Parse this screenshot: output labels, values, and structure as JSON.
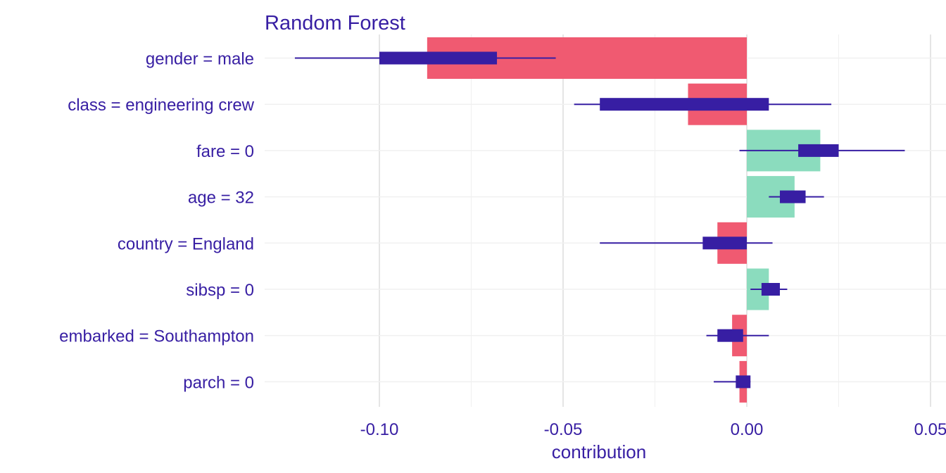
{
  "colors": {
    "positive": "#8bdcbe",
    "negative": "#f05a71",
    "boxplot": "#371ea3",
    "text": "#371ea3",
    "grid_major": "#e5e5e5",
    "grid_minor": "#f0f0f0"
  },
  "chart_data": {
    "type": "bar",
    "title": "Random Forest",
    "xlabel": "contribution",
    "ylabel": "",
    "xlim": [
      -0.125,
      0.052
    ],
    "x_ticks": [
      -0.1,
      -0.05,
      0.0,
      0.05
    ],
    "x_tick_labels": [
      "-0.10",
      "-0.05",
      "0.00",
      "0.05"
    ],
    "grid": true,
    "orientation": "horizontal",
    "categories": [
      "gender = male",
      "class = engineering crew",
      "fare = 0",
      "age = 32",
      "country = England",
      "sibsp = 0",
      "embarked = Southampton",
      "parch = 0"
    ],
    "values": [
      -0.087,
      -0.016,
      0.02,
      0.013,
      -0.008,
      0.006,
      -0.004,
      -0.002
    ],
    "boxplots": [
      {
        "min": -0.123,
        "q1": -0.1,
        "q3": -0.068,
        "max": -0.052
      },
      {
        "min": -0.047,
        "q1": -0.04,
        "q3": 0.006,
        "max": 0.023
      },
      {
        "min": -0.002,
        "q1": 0.014,
        "q3": 0.025,
        "max": 0.043
      },
      {
        "min": 0.006,
        "q1": 0.009,
        "q3": 0.016,
        "max": 0.021
      },
      {
        "min": -0.04,
        "q1": -0.012,
        "q3": 0.0,
        "max": 0.007
      },
      {
        "min": 0.001,
        "q1": 0.004,
        "q3": 0.009,
        "max": 0.011
      },
      {
        "min": -0.011,
        "q1": -0.008,
        "q3": -0.001,
        "max": 0.006
      },
      {
        "min": -0.009,
        "q1": -0.003,
        "q3": 0.001,
        "max": 0.001
      }
    ]
  }
}
